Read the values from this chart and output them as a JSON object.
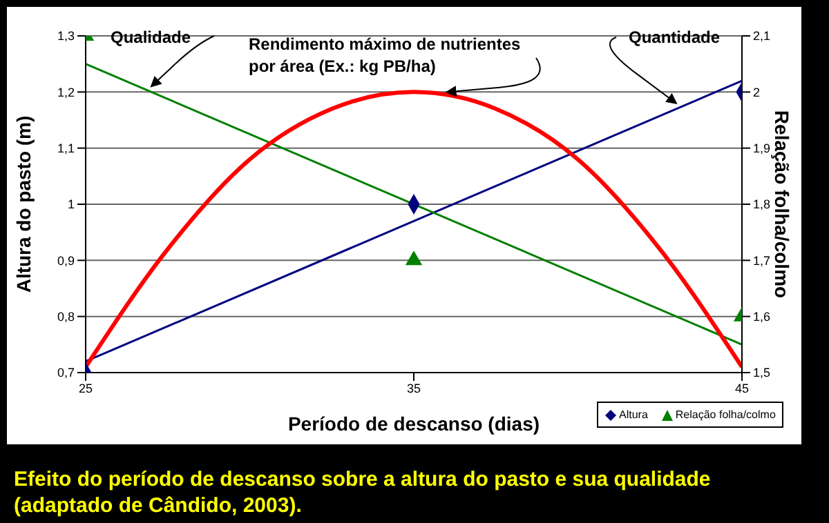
{
  "chart_data": {
    "type": "line",
    "xlabel": "Período de descanso (dias)",
    "ylabel": "Altura do pasto (m)",
    "y2label": "Relação folha/colmo",
    "x": [
      25,
      35,
      45
    ],
    "xlim": [
      25,
      45
    ],
    "xticks": [
      25,
      35,
      45
    ],
    "ylim": [
      0.7,
      1.3
    ],
    "yticks": [
      {
        "value": 0.7,
        "label": "0,7"
      },
      {
        "value": 0.8,
        "label": "0,8"
      },
      {
        "value": 0.9,
        "label": "0,9"
      },
      1,
      {
        "value": 1.1,
        "label": "1,1"
      },
      {
        "value": 1.2,
        "label": "1,2"
      },
      {
        "value": 1.3,
        "label": "1,3"
      }
    ],
    "y2lim": [
      1.5,
      2.1
    ],
    "y2ticks": [
      {
        "value": 1.5,
        "label": "1,5"
      },
      {
        "value": 1.6,
        "label": "1,6"
      },
      {
        "value": 1.7,
        "label": "1,7"
      },
      {
        "value": 1.8,
        "label": "1,8"
      },
      {
        "value": 1.9,
        "label": "1,9"
      },
      2,
      {
        "value": 2.1,
        "label": "2,1"
      }
    ],
    "grid": "y",
    "legend": "bottom right",
    "series": [
      {
        "name": "Altura",
        "type": "scatter",
        "marker": "diamond",
        "color": "#000080",
        "values": [
          0.7,
          1.0,
          1.2
        ]
      },
      {
        "name": "Relação folha/colmo",
        "type": "scatter",
        "marker": "triangle",
        "color": "#008000",
        "axis": "y2",
        "values": [
          2.1,
          1.7,
          1.6
        ]
      },
      {
        "type": "line",
        "color": "#000080",
        "x": [
          25,
          45
        ],
        "values": [
          0.72,
          1.22
        ]
      },
      {
        "type": "line",
        "color": "#008000",
        "axis": "y2",
        "x": [
          25,
          45
        ],
        "values": [
          2.05,
          1.55
        ]
      },
      {
        "color": "#ff0000",
        "x": [
          25,
          27.5,
          30,
          32.5,
          35,
          37.5,
          40,
          42.5,
          45
        ],
        "values": [
          0.71,
          0.92,
          1.08,
          1.17,
          1.2,
          1.17,
          1.08,
          0.92,
          0.71
        ]
      }
    ],
    "annotations": [
      {
        "text": "Qualidade",
        "x": 27,
        "y": 1.2
      },
      {
        "text": "Rendimento máximo de nutrientes por área (Ex.: kg PB/ha)",
        "x": 36,
        "y": 1.19
      },
      {
        "text": "Quantidade",
        "x": 43,
        "y": 1.17
      },
      "Efeito do período de descanso sobre a altura do pasto e sua qualidade (adaptado de Cândido, 2003)."
    ]
  }
}
